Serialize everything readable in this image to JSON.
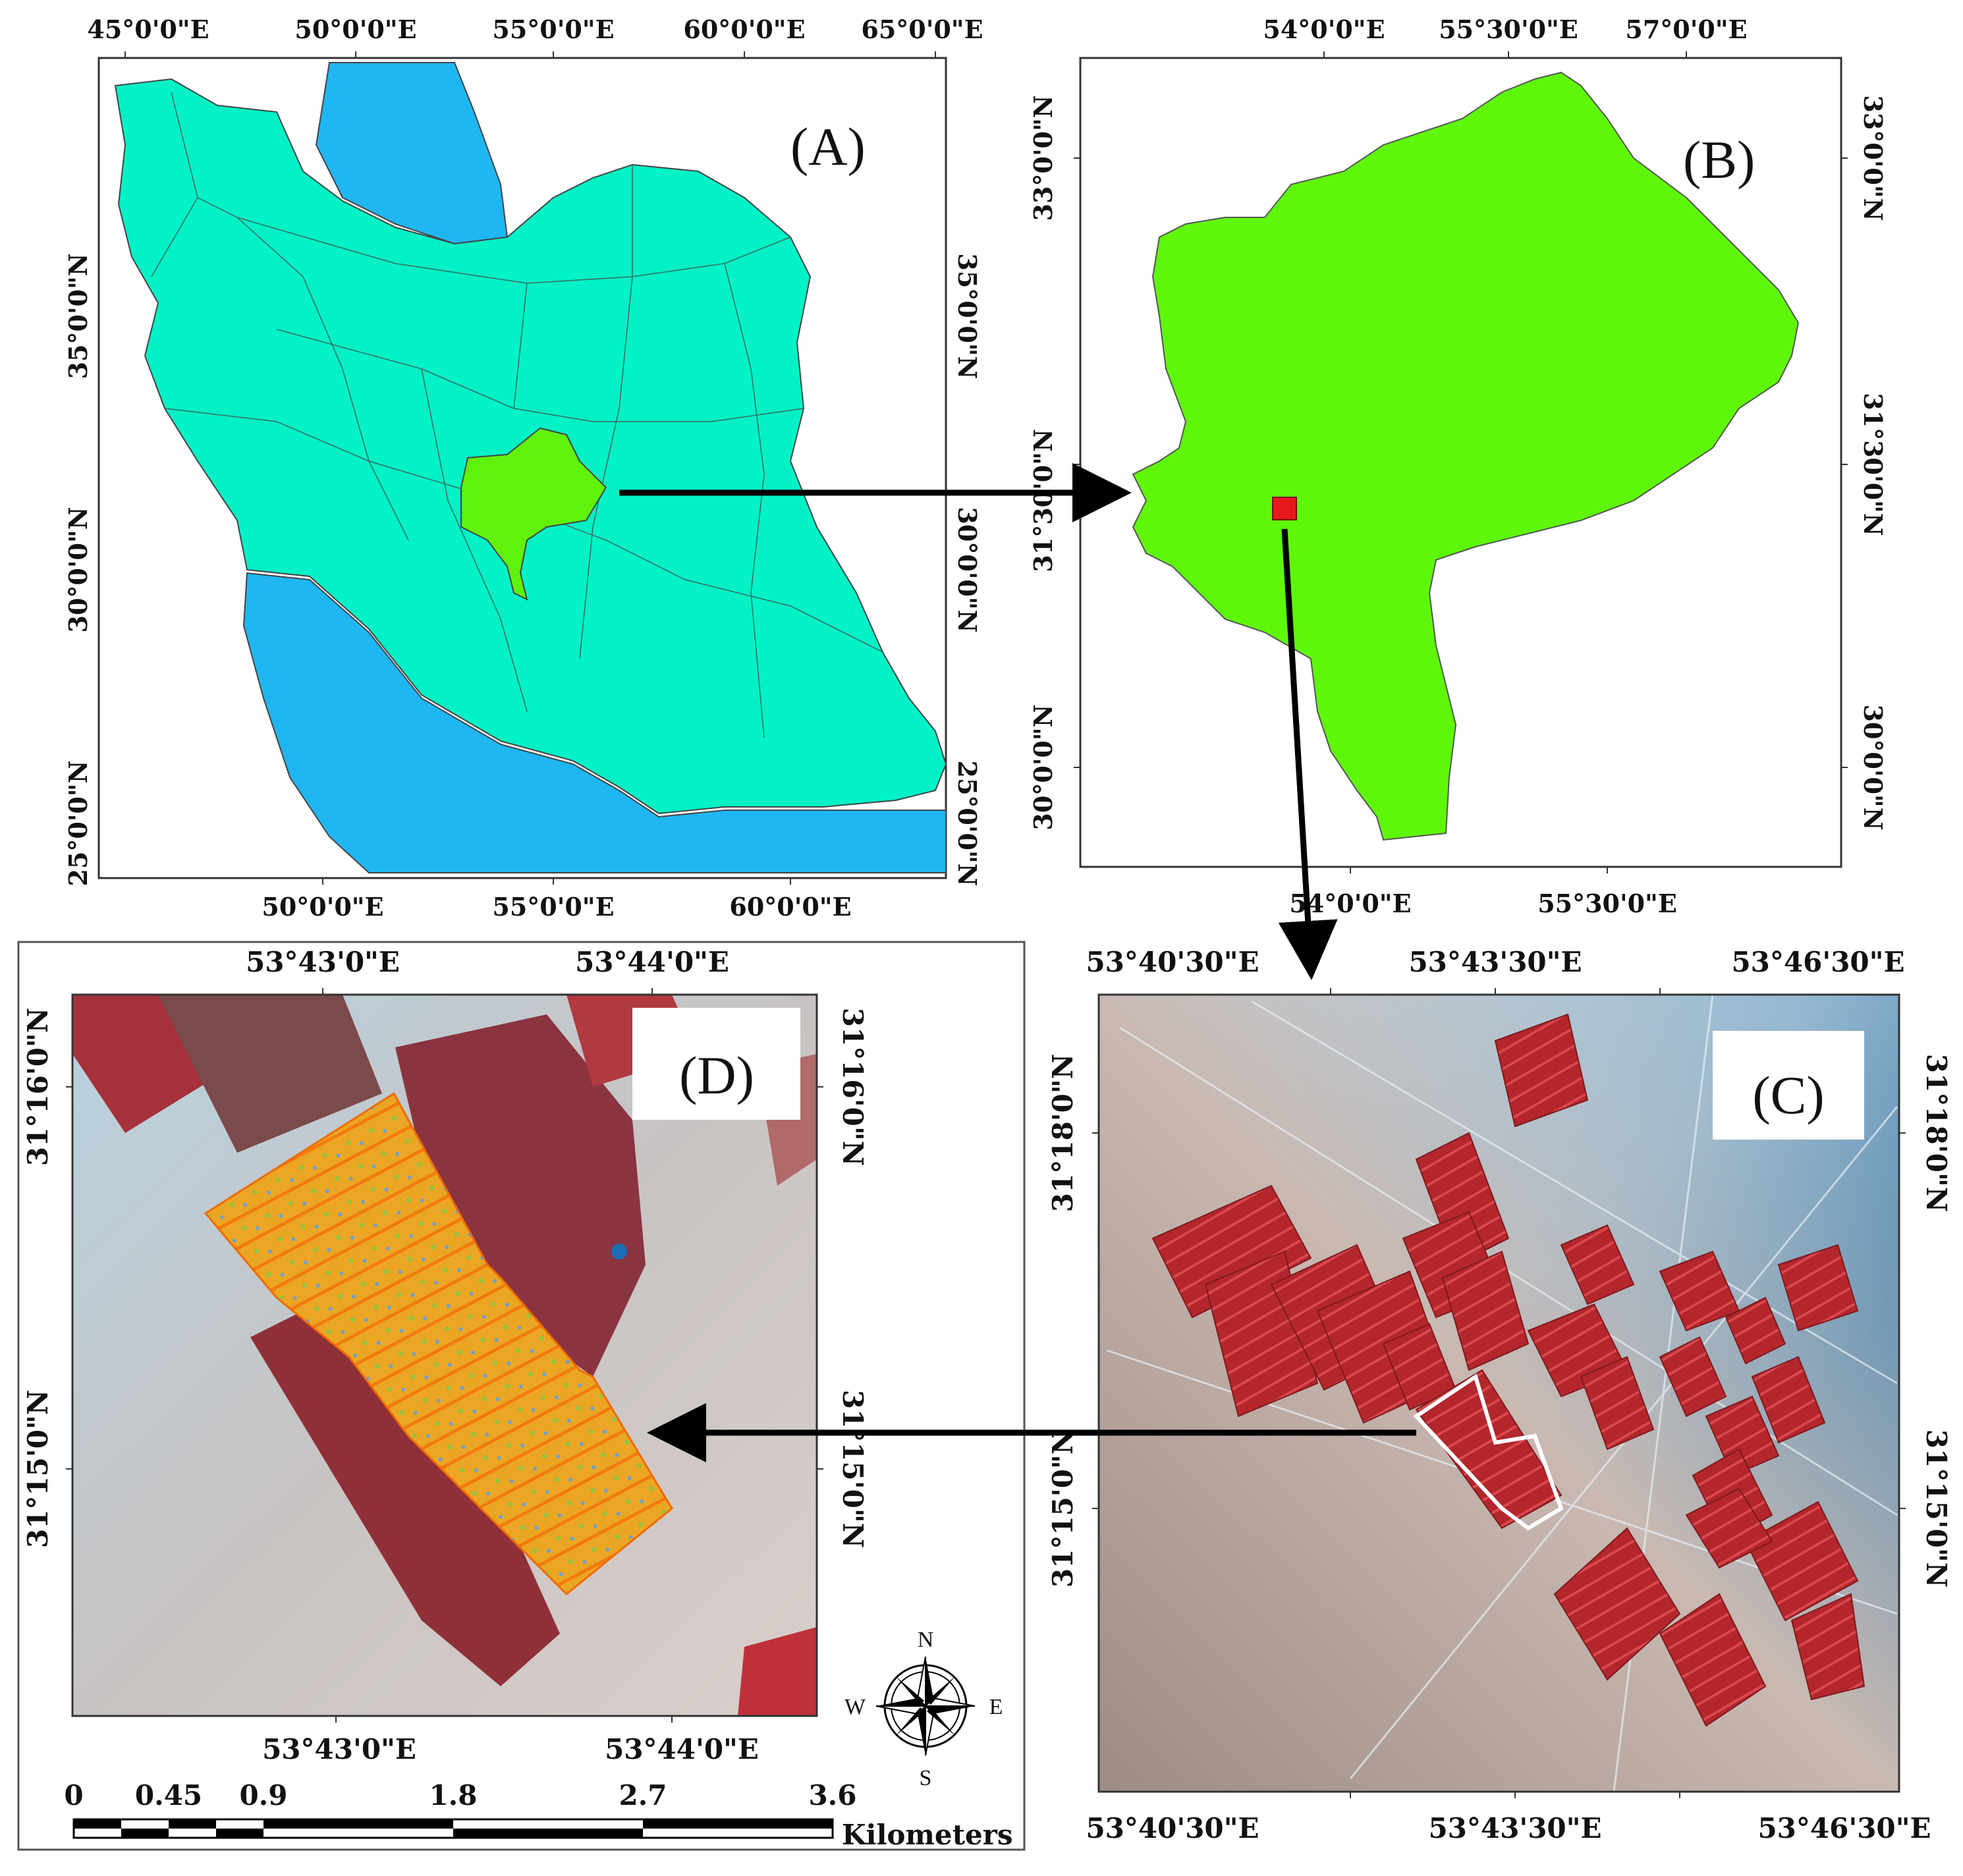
{
  "panels": {
    "a": {
      "tag": "(A)",
      "top_ticks": [
        "45°0'0\"E",
        "50°0'0\"E",
        "55°0'0\"E",
        "60°0'0\"E",
        "65°0'0\"E"
      ],
      "bottom_ticks": [
        "50°0'0\"E",
        "55°0'0\"E",
        "60°0'0\"E"
      ],
      "left_ticks": [
        "35°0'0\"N",
        "30°0'0\"N",
        "25°0'0\"N"
      ],
      "right_ticks": [
        "35°0'0\"N",
        "30°0'0\"N",
        "25°0'0\"N"
      ],
      "colors": {
        "land": "#00f2c6",
        "water": "#1fb6f2",
        "highlight": "#60f20a"
      }
    },
    "b": {
      "tag": "(B)",
      "top_ticks": [
        "54°0'0\"E",
        "55°30'0\"E",
        "57°0'0\"E"
      ],
      "bottom_ticks": [
        "54°0'0\"E",
        "55°30'0\"E"
      ],
      "left_ticks": [
        "33°0'0\"N",
        "31°30'0\"N",
        "30°0'0\"N"
      ],
      "right_ticks": [
        "33°0'0\"N",
        "31°30'0\"N",
        "30°0'0\"N"
      ],
      "colors": {
        "province": "#5ef70a",
        "marker": "#e8191c"
      }
    },
    "c": {
      "tag": "(C)",
      "top_ticks": [
        "53°40'30\"E",
        "53°43'30\"E",
        "53°46'30\"E"
      ],
      "bottom_ticks": [
        "53°40'30\"E",
        "53°43'30\"E",
        "53°46'30\"E"
      ],
      "left_ticks": [
        "31°18'0\"N",
        "31°15'0\"N"
      ],
      "right_ticks": [
        "31°18'0\"N",
        "31°15'0\"N"
      ]
    },
    "d": {
      "tag": "(D)",
      "top_ticks": [
        "53°43'0\"E",
        "53°44'0\"E"
      ],
      "bottom_ticks": [
        "53°43'0\"E",
        "53°44'0\"E"
      ],
      "left_ticks": [
        "31°16'0\"N",
        "31°15'0\"N"
      ],
      "right_ticks": [
        "31°16'0\"N",
        "31°15'0\"N"
      ]
    }
  },
  "compass": {
    "n": "N",
    "s": "S",
    "e": "E",
    "w": "W",
    "icon": "compass-rose-icon"
  },
  "scale_bar": {
    "ticks": [
      "0",
      "0.45",
      "0.9",
      "1.8",
      "2.7",
      "3.6"
    ],
    "unit": "Kilometers"
  }
}
